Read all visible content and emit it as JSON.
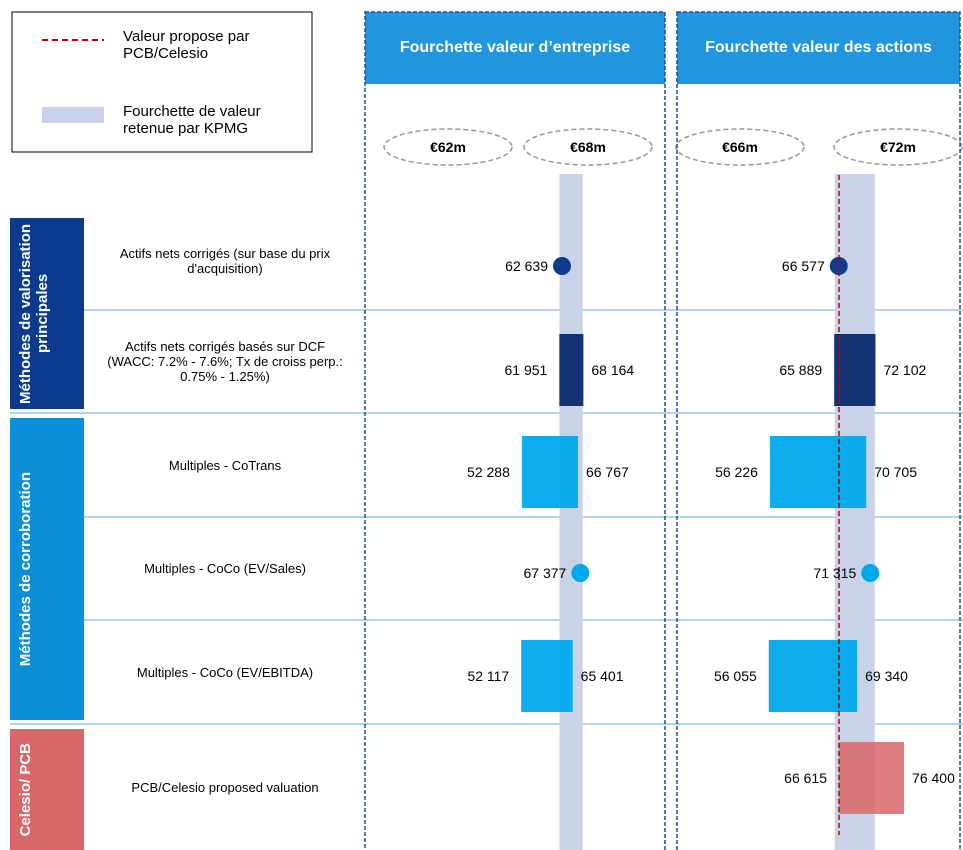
{
  "legend": [
    {
      "label": "Valeur propose par PCB/Celesio",
      "color": "#c00000",
      "style": "dashed"
    },
    {
      "label": "Fourchette de valeur retenue par KPMG",
      "color": "#c8d3e8",
      "style": "band"
    }
  ],
  "groups": [
    {
      "label": "Méthodes de valorisation principales",
      "color": "#0b3a8f",
      "methods": [
        "Actifs nets corrigés (sur base du prix d'acquisition)",
        "Actifs nets corrigés basés sur DCF (WACC: 7.2% - 7.6%; Tx de croiss perp.: 0.75% - 1.25%)"
      ]
    },
    {
      "label": "Méthodes de corroboration",
      "color": "#0a8fd8",
      "methods": [
        "Multiples - CoTrans",
        "Multiples - CoCo (EV/Sales)",
        "Multiples - CoCo (EV/EBITDA)"
      ]
    },
    {
      "label": "Celesio/ PCB",
      "color": "#d9676a",
      "methods": [
        "PCB/Celesio proposed valuation"
      ]
    }
  ],
  "chart_data": [
    {
      "type": "football-field",
      "title": "Fourchette valeur d’entreprise",
      "xlim": [
        10000,
        90000
      ],
      "range": [
        {
          "value": 62000,
          "label": "€62m"
        },
        {
          "value": 68000,
          "label": "€68m"
        }
      ],
      "reference_line": false,
      "rows": [
        {
          "values": [
            62639
          ],
          "value_labels": [
            "62 639"
          ],
          "color": "#0d3b8e"
        },
        {
          "values": [
            61951,
            68164
          ],
          "value_labels": [
            "61 951",
            "68 164"
          ],
          "color": "#0b2a6e"
        },
        {
          "values": [
            52288,
            66767
          ],
          "value_labels": [
            "52 288",
            "66 767"
          ],
          "color": "#00a9ec"
        },
        {
          "values": [
            67377
          ],
          "value_labels": [
            "67 377"
          ],
          "color": "#00a9ec"
        },
        {
          "values": [
            52117,
            65401
          ],
          "value_labels": [
            "52 117",
            "65 401"
          ],
          "color": "#00a9ec"
        },
        null
      ]
    },
    {
      "type": "football-field",
      "title": "Fourchette valeur des actions",
      "xlim": [
        40000,
        80000
      ],
      "range": [
        {
          "value": 66000,
          "label": "€66m"
        },
        {
          "value": 72000,
          "label": "€72m"
        }
      ],
      "reference_line": true,
      "rows": [
        {
          "values": [
            66577
          ],
          "value_labels": [
            "66 577"
          ],
          "color": "#0d3b8e"
        },
        {
          "values": [
            65889,
            72102
          ],
          "value_labels": [
            "65 889",
            "72 102"
          ],
          "color": "#0b2a6e"
        },
        {
          "values": [
            56226,
            70705
          ],
          "value_labels": [
            "56 226",
            "70 705"
          ],
          "color": "#00a9ec"
        },
        {
          "values": [
            71315
          ],
          "value_labels": [
            "71 315"
          ],
          "color": "#00a9ec"
        },
        {
          "values": [
            56055,
            69340
          ],
          "value_labels": [
            "56 055",
            "69 340"
          ],
          "color": "#00a9ec"
        },
        {
          "values": [
            66615,
            76400
          ],
          "value_labels": [
            "66 615",
            "76 400"
          ],
          "color": "#d9676a"
        }
      ]
    }
  ]
}
